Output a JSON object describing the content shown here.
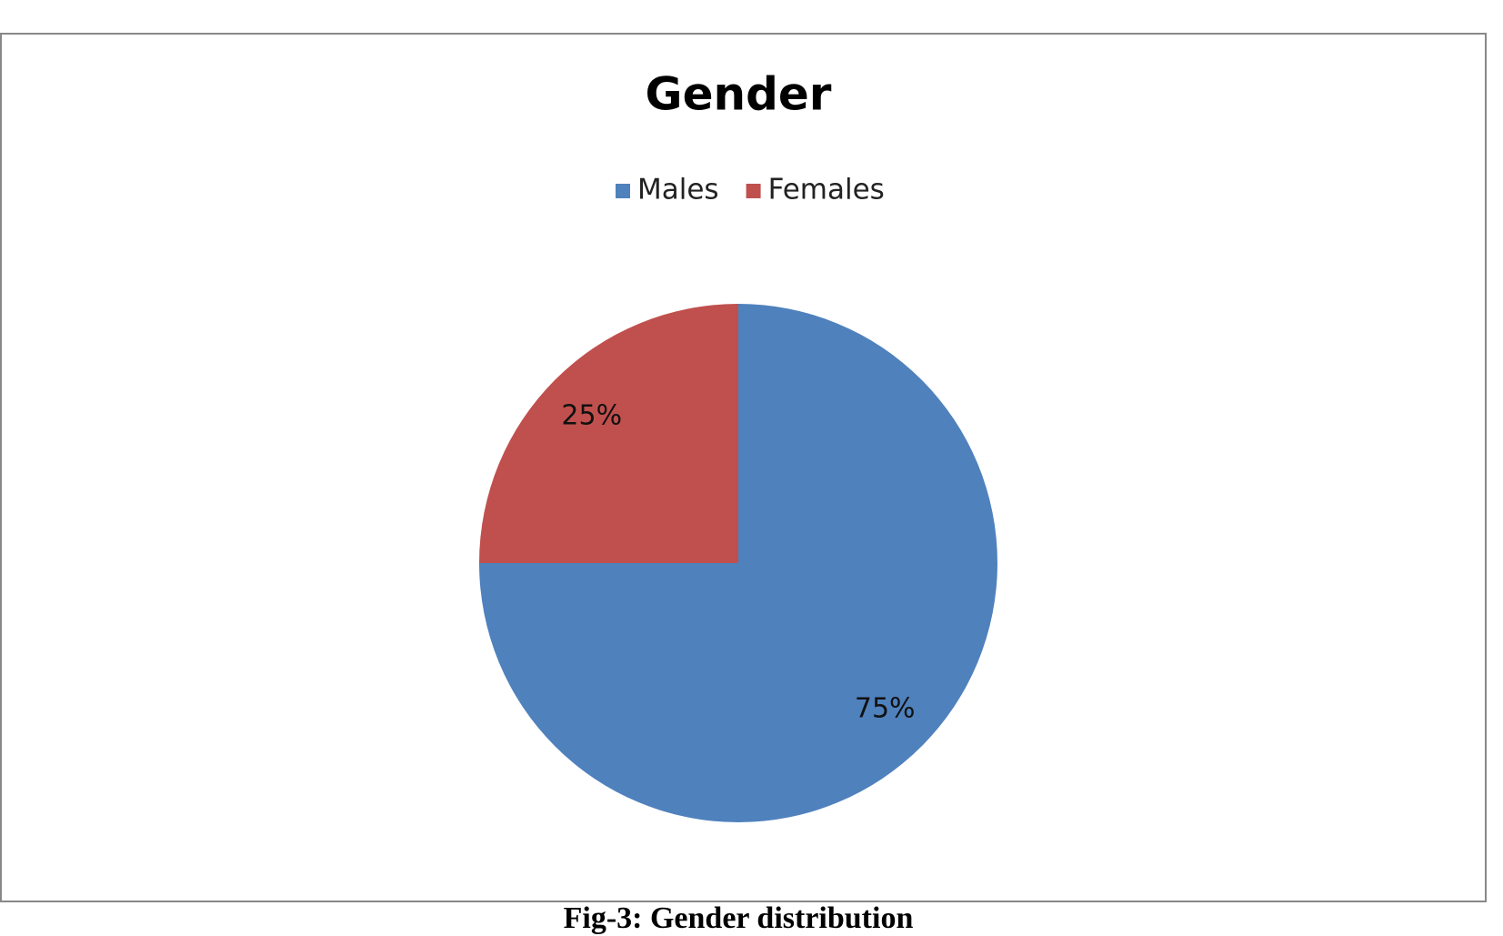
{
  "chart_data": {
    "type": "pie",
    "title": "Gender",
    "categories": [
      "Males",
      "Females"
    ],
    "values": [
      75,
      25
    ],
    "value_labels": [
      "75%",
      "25%"
    ],
    "colors": [
      "#4f81bd",
      "#c0504d"
    ],
    "legend": "top"
  },
  "caption": "Fig-3: Gender distribution"
}
